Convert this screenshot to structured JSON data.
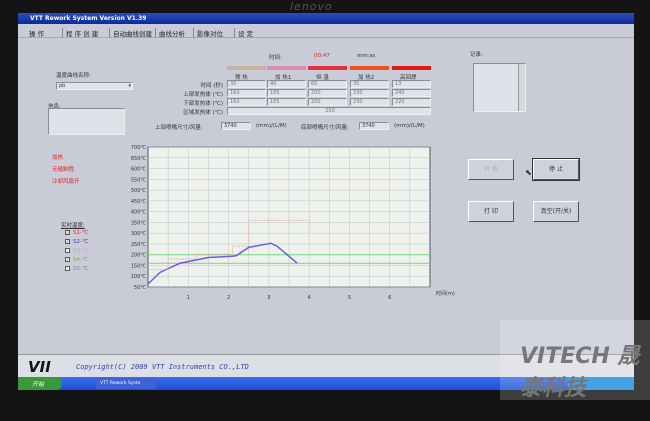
{
  "bezel": {
    "brand": "lenovo"
  },
  "window": {
    "title": "VTT Rework System Version V1.39"
  },
  "menu": [
    "操  作",
    "程 序 创 建",
    "自动曲线创建",
    "曲线分析",
    "影像对位",
    "设  定"
  ],
  "profile": {
    "name_label": "温度曲线名称:",
    "name_value": "pb",
    "info_label": "信息:"
  },
  "timer": {
    "label": "时间:",
    "value": "00:47",
    "unit": "mm:ss"
  },
  "stages": [
    {
      "name": "预  热",
      "color": "#c8b49a"
    },
    {
      "name": "加  热1",
      "color": "#d890b0"
    },
    {
      "name": "恒  温",
      "color": "#e83040"
    },
    {
      "name": "加  热2",
      "color": "#f05020"
    },
    {
      "name": "高回焊",
      "color": "#e01818"
    }
  ],
  "rows": [
    {
      "label": "时间 (秒)",
      "values": [
        "35",
        "40",
        "60",
        "35",
        "13"
      ]
    },
    {
      "label": "上部发热体 (℃)",
      "values": [
        "160",
        "185",
        "200",
        "230",
        "240"
      ]
    },
    {
      "label": "下部发热体 (℃)",
      "values": [
        "160",
        "185",
        "200",
        "230",
        "220"
      ]
    },
    {
      "label": "区域发热体 (℃)",
      "values": [
        "250"
      ]
    }
  ],
  "nozzle": {
    "top_label": "上部喷嘴尺寸/风量:",
    "top_value": "3740",
    "top_unit": "(mm)/(L/M)",
    "bottom_label": "底部喷嘴尺寸/风量:",
    "bottom_value": "3740",
    "bottom_unit": "(mm)/(L/M)"
  },
  "status": [
    "加热",
    "无缝制程",
    "冷却风扇开"
  ],
  "realtime": {
    "label": "实时温度:",
    "sensors": [
      {
        "name": "S1-℃",
        "checked": true,
        "color": "#d22"
      },
      {
        "name": "S2-℃",
        "checked": true,
        "color": "#33c"
      },
      {
        "name": "S3-℃",
        "checked": false,
        "color": "#d9a"
      },
      {
        "name": "S4-℃",
        "checked": true,
        "color": "#9a2"
      },
      {
        "name": "S5-℃",
        "checked": false,
        "color": "#888"
      }
    ]
  },
  "log": {
    "label": "记录:"
  },
  "buttons": {
    "start": "开 始",
    "stop": "停 止",
    "print": "打 印",
    "vacuum": "真空(开/关)"
  },
  "footer": {
    "logo": "VII",
    "copyright": "Copyright(C) 2009 VTT Instruments CO.,LTD"
  },
  "taskbar": {
    "start": "开始",
    "app": "VTT Rework Syste"
  },
  "watermark": {
    "text": "VITECH 晟泰科技"
  },
  "chart_data": {
    "type": "line",
    "xlabel": "时间(m)",
    "xlim": [
      0,
      7
    ],
    "xticks": [
      1,
      2,
      3,
      4,
      5,
      6
    ],
    "ylim": [
      50,
      700
    ],
    "yticks": [
      "700℃",
      "650℃",
      "600℃",
      "550℃",
      "500℃",
      "450℃",
      "400℃",
      "350℃",
      "300℃",
      "250℃",
      "200℃",
      "150℃",
      "100℃",
      "50℃"
    ],
    "grid": true,
    "reference_lines": [
      {
        "y": 200,
        "color": "#7ad67a"
      },
      {
        "y": 160,
        "color": "#7ad67a"
      }
    ],
    "series": [
      {
        "color": "#6a5ce8",
        "x": [
          0,
          0.3,
          0.8,
          1.5,
          2.1,
          2.2,
          2.5,
          3.05,
          3.2,
          3.7
        ],
        "y": [
          64,
          118,
          161,
          187,
          193,
          196,
          234,
          253,
          240,
          161
        ]
      },
      {
        "color": "#e8a0a0",
        "dashed": true,
        "x": [
          0,
          0.5,
          0.5,
          1.2,
          1.2,
          2.1,
          2.1,
          2.5,
          2.5,
          4.0,
          4.0
        ],
        "y": [
          130,
          130,
          180,
          180,
          202,
          202,
          240,
          240,
          360,
          360,
          300
        ]
      }
    ]
  }
}
